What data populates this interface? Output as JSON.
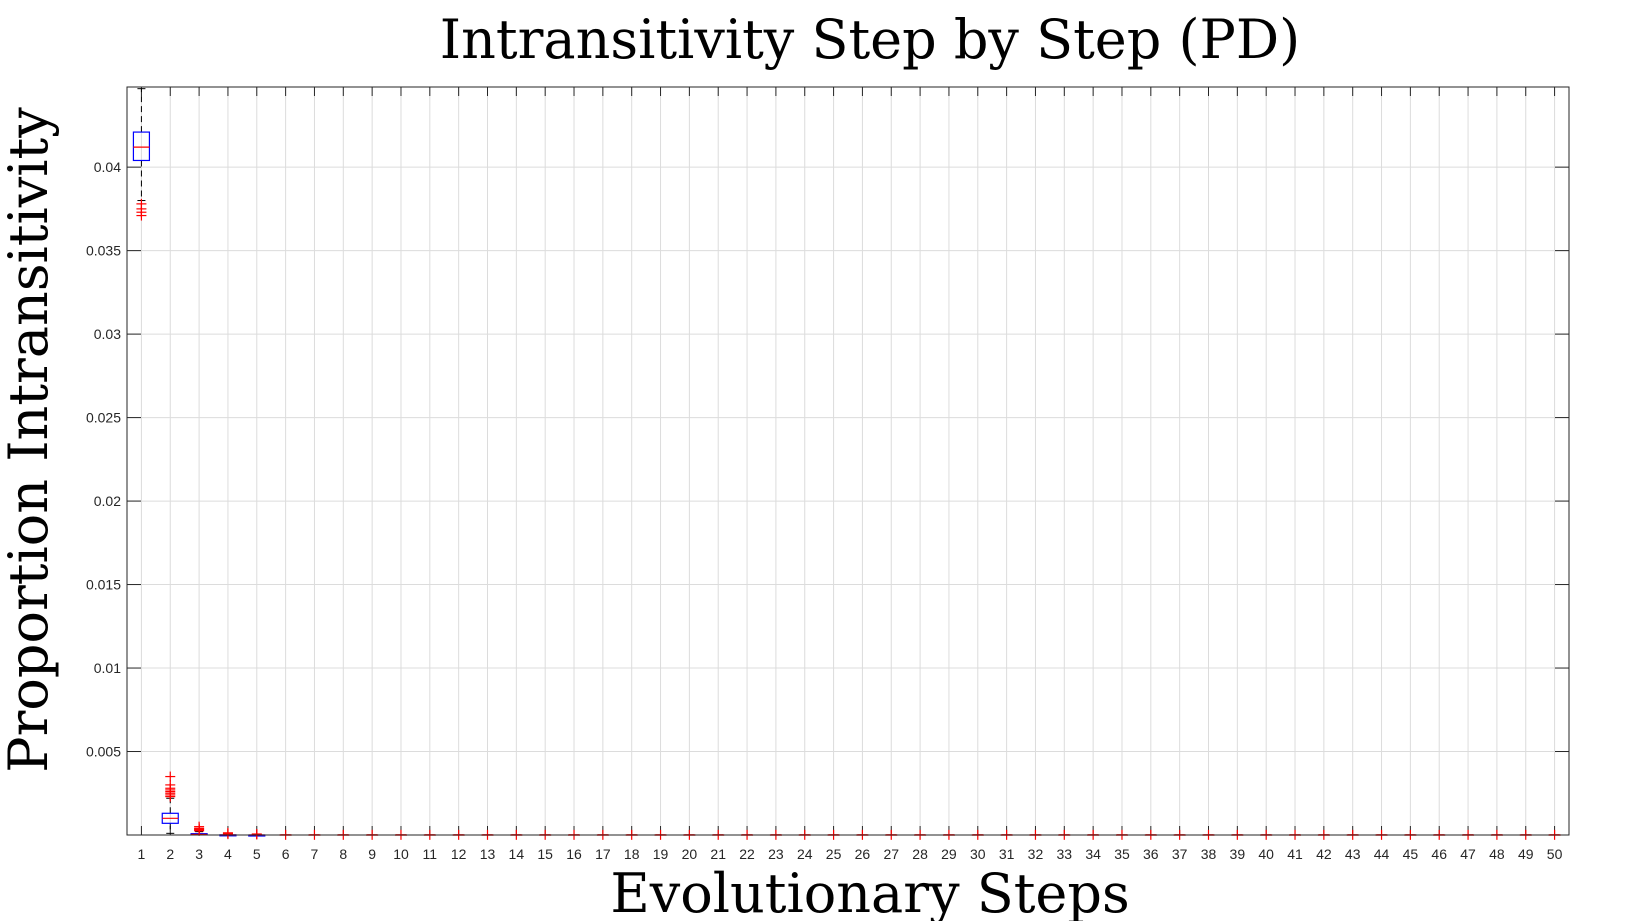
{
  "chart_data": {
    "type": "box",
    "title": "Intransitivity Step by Step (PD)",
    "xlabel": "Evolutionary Steps",
    "ylabel": "Proportion Intransitivity",
    "xlim": [
      0.5,
      50.5
    ],
    "ylim": [
      0,
      0.0448
    ],
    "yticks": [
      0.005,
      0.01,
      0.015,
      0.02,
      0.025,
      0.03,
      0.035,
      0.04
    ],
    "ytick_labels": [
      "0.005",
      "0.01",
      "0.015",
      "0.02",
      "0.025",
      "0.03",
      "0.035",
      "0.04"
    ],
    "categories": [
      "1",
      "2",
      "3",
      "4",
      "5",
      "6",
      "7",
      "8",
      "9",
      "10",
      "11",
      "12",
      "13",
      "14",
      "15",
      "16",
      "17",
      "18",
      "19",
      "20",
      "21",
      "22",
      "23",
      "24",
      "25",
      "26",
      "27",
      "28",
      "29",
      "30",
      "31",
      "32",
      "33",
      "34",
      "35",
      "36",
      "37",
      "38",
      "39",
      "40",
      "41",
      "42",
      "43",
      "44",
      "45",
      "46",
      "47",
      "48",
      "49",
      "50"
    ],
    "grid": true,
    "colors": {
      "box": "#0000ff",
      "median": "#ff0000",
      "whisker": "#000000",
      "outlier": "#ff0000",
      "grid": "#dcdcdc",
      "axis": "#262626"
    },
    "boxes": [
      {
        "step": 1,
        "q1": 0.0404,
        "median": 0.0412,
        "q3": 0.0421,
        "whisker_low": 0.038,
        "whisker_high": 0.0447,
        "outliers": [
          0.0378,
          0.0375,
          0.0373,
          0.0371
        ]
      },
      {
        "step": 2,
        "q1": 0.0007,
        "median": 0.001,
        "q3": 0.0013,
        "whisker_low": 0.0001,
        "whisker_high": 0.0022,
        "outliers": [
          0.0023,
          0.0024,
          0.0025,
          0.0026,
          0.0027,
          0.0028,
          0.003,
          0.0035
        ]
      },
      {
        "step": 3,
        "q1": 1e-05,
        "median": 3e-05,
        "q3": 8e-05,
        "whisker_low": 0.0,
        "whisker_high": 0.0002,
        "outliers": [
          0.00025,
          0.0003,
          0.00035,
          0.0004,
          0.0005
        ]
      },
      {
        "step": 4,
        "q1": 0.0,
        "median": 0.0,
        "q3": 1e-05,
        "whisker_low": 0.0,
        "whisker_high": 3e-05,
        "outliers": [
          5e-05,
          0.0001,
          0.00013
        ]
      },
      {
        "step": 5,
        "q1": 0.0,
        "median": 0.0,
        "q3": 0.0,
        "whisker_low": 0.0,
        "whisker_high": 0.0,
        "outliers": [
          3e-05,
          6e-05
        ]
      }
    ],
    "remaining_steps_value": 0.0,
    "remaining_steps_outliers": [
      1e-05
    ]
  }
}
